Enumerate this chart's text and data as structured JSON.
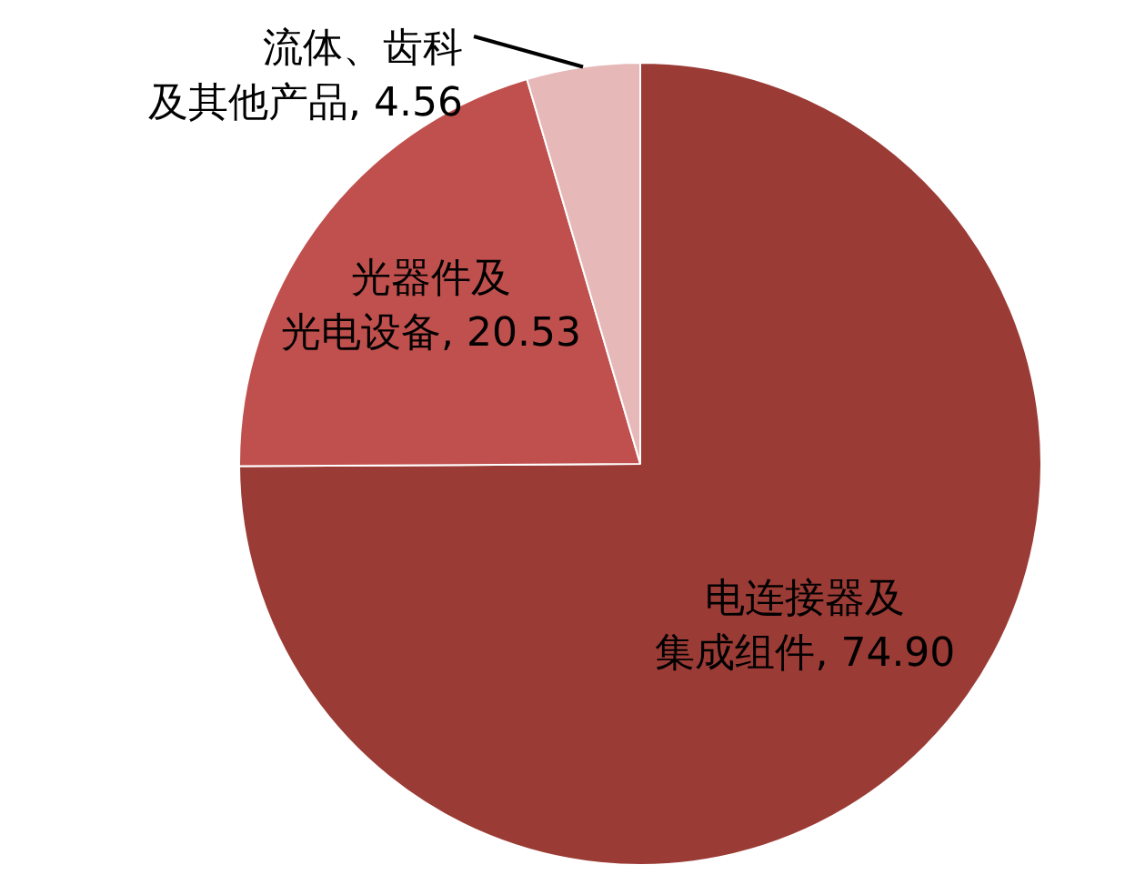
{
  "chart_data": {
    "type": "pie",
    "categories": [
      "电连接器及集成组件",
      "光器件及光电设备",
      "流体、齿科及其他产品"
    ],
    "values": [
      74.9,
      20.53,
      4.56
    ],
    "colors": [
      "#9b3b35",
      "#c0504d",
      "#e6b9b8"
    ],
    "value_labels": [
      "74.90",
      "20.53",
      "4.56"
    ],
    "legend": false
  }
}
